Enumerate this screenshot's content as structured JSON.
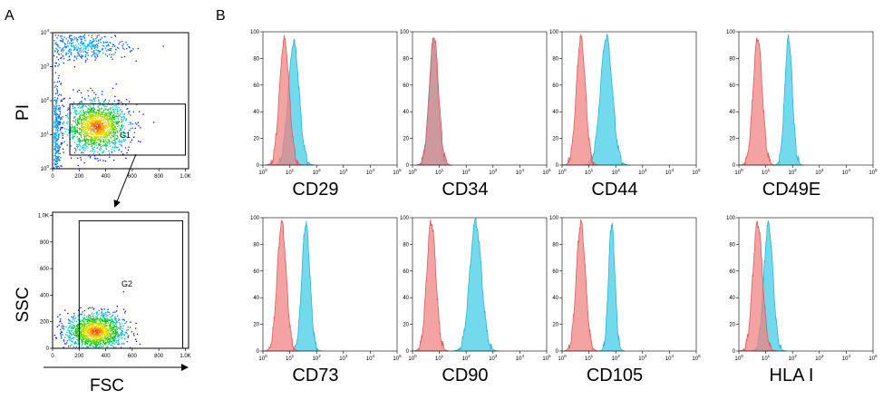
{
  "panel_labels": {
    "a": "A",
    "b": "B"
  },
  "colors": {
    "isotype": "#f08080",
    "isotype_line": "#e05a5a",
    "antibody": "#5bd3ea",
    "antibody_line": "#2bb5d6",
    "overlap": "#8aa1c4",
    "density_low": "#0000ff",
    "density_high": "#ff2200"
  },
  "chart_data": [
    {
      "type": "scatter",
      "panel": "A",
      "plot": "PI-vs-FSC",
      "xlabel": "",
      "ylabel": "PI",
      "x_ticks": [
        "0",
        "200",
        "400",
        "600",
        "800",
        "1.0K"
      ],
      "y_ticks": [
        "10^0",
        "10^1",
        "10^2",
        "10^3",
        "10^4"
      ],
      "yscale": "log",
      "xlim": [
        0,
        1024
      ],
      "ylim_log10": [
        0,
        4
      ],
      "gates": [
        {
          "name": "G1",
          "x_range": [
            130,
            1000
          ],
          "y_log10_range": [
            0.4,
            1.9
          ]
        }
      ],
      "populations": [
        {
          "label": "main",
          "center": [
            330,
            1.25
          ],
          "spread": [
            120,
            0.38
          ],
          "density": "high"
        },
        {
          "label": "PI-positive",
          "center": [
            220,
            3.6
          ],
          "spread": [
            170,
            0.2
          ],
          "density": "medium"
        },
        {
          "label": "debris",
          "center": [
            20,
            1.0
          ],
          "spread": [
            20,
            0.9
          ],
          "density": "medium"
        }
      ]
    },
    {
      "type": "scatter",
      "panel": "A",
      "plot": "SSC-vs-FSC",
      "xlabel": "FSC",
      "ylabel": "SSC",
      "x_ticks": [
        "0",
        "200",
        "400",
        "600",
        "800",
        "1.0K"
      ],
      "y_ticks": [
        "0",
        "200",
        "400",
        "600",
        "800",
        "1.0K"
      ],
      "xlim": [
        0,
        1024
      ],
      "ylim": [
        0,
        1024
      ],
      "gates": [
        {
          "name": "G2",
          "x_range": [
            200,
            980
          ],
          "y_range": [
            0,
            960
          ]
        }
      ],
      "populations": [
        {
          "label": "gated-cells",
          "center": [
            320,
            130
          ],
          "spread": [
            110,
            70
          ],
          "density": "high"
        }
      ]
    },
    {
      "type": "area",
      "panel": "B",
      "xscale": "log",
      "x_ticks": [
        "10^0",
        "10^1",
        "10^2",
        "10^3",
        "10^4",
        "10^5"
      ],
      "y_ticks": [
        "0",
        "20",
        "40",
        "60",
        "80",
        "100"
      ],
      "xlim_log10": [
        0,
        5
      ],
      "ylim": [
        0,
        100
      ],
      "series_roles": [
        "isotype control",
        "antibody stain"
      ],
      "histograms": [
        {
          "marker": "CD29",
          "isotype": {
            "peak_log10": 0.8,
            "width": 0.18,
            "height": 95
          },
          "antibody": {
            "peak_log10": 1.15,
            "width": 0.2,
            "height": 93
          }
        },
        {
          "marker": "CD34",
          "isotype": {
            "peak_log10": 0.8,
            "width": 0.17,
            "height": 97
          },
          "antibody": {
            "peak_log10": 0.78,
            "width": 0.16,
            "height": 94
          }
        },
        {
          "marker": "CD44",
          "isotype": {
            "peak_log10": 0.7,
            "width": 0.17,
            "height": 96
          },
          "antibody": {
            "peak_log10": 1.65,
            "width": 0.22,
            "height": 97
          }
        },
        {
          "marker": "CD49E",
          "isotype": {
            "peak_log10": 0.7,
            "width": 0.17,
            "height": 96
          },
          "antibody": {
            "peak_log10": 1.85,
            "width": 0.14,
            "height": 96
          }
        },
        {
          "marker": "CD73",
          "isotype": {
            "peak_log10": 0.7,
            "width": 0.17,
            "height": 96
          },
          "antibody": {
            "peak_log10": 1.6,
            "width": 0.15,
            "height": 96
          }
        },
        {
          "marker": "CD90",
          "isotype": {
            "peak_log10": 0.7,
            "width": 0.17,
            "height": 97
          },
          "antibody": {
            "peak_log10": 2.35,
            "width": 0.22,
            "height": 97
          }
        },
        {
          "marker": "CD105",
          "isotype": {
            "peak_log10": 0.7,
            "width": 0.17,
            "height": 96
          },
          "antibody": {
            "peak_log10": 1.85,
            "width": 0.12,
            "height": 95
          }
        },
        {
          "marker": "HLA I",
          "isotype": {
            "peak_log10": 0.7,
            "width": 0.18,
            "height": 96
          },
          "antibody": {
            "peak_log10": 1.1,
            "width": 0.17,
            "height": 95
          }
        }
      ]
    }
  ]
}
